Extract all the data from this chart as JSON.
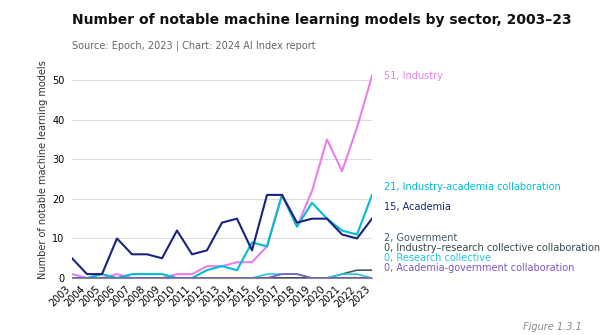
{
  "title": "Number of notable machine learning models by sector, 2003–23",
  "subtitle": "Source: Epoch, 2023 | Chart: 2024 AI Index report",
  "ylabel": "Number of notable machine learning models",
  "figure_label": "Figure 1.3.1",
  "years": [
    2003,
    2004,
    2005,
    2006,
    2007,
    2008,
    2009,
    2010,
    2011,
    2012,
    2013,
    2014,
    2015,
    2016,
    2017,
    2018,
    2019,
    2020,
    2021,
    2022,
    2023
  ],
  "series": [
    {
      "label": "Industry",
      "end_label": "51, Industry",
      "color": "#e87ee8",
      "linewidth": 1.5,
      "values": [
        1,
        0,
        0,
        1,
        0,
        0,
        0,
        1,
        1,
        3,
        3,
        4,
        4,
        8,
        21,
        13,
        22,
        35,
        27,
        38,
        51
      ]
    },
    {
      "label": "Industry-academia collaboration",
      "end_label": "21, Industry-academia collaboration",
      "color": "#00bcd4",
      "linewidth": 1.5,
      "values": [
        0,
        0,
        1,
        0,
        1,
        1,
        1,
        0,
        0,
        2,
        3,
        2,
        9,
        8,
        21,
        13,
        19,
        15,
        12,
        11,
        21
      ]
    },
    {
      "label": "Academia",
      "end_label": "15, Academia",
      "color": "#1a237e",
      "linewidth": 1.5,
      "values": [
        5,
        1,
        1,
        10,
        6,
        6,
        5,
        12,
        6,
        7,
        14,
        15,
        7,
        21,
        21,
        14,
        15,
        15,
        11,
        10,
        15
      ]
    },
    {
      "label": "Government",
      "end_label": "2, Government",
      "color": "#455a64",
      "linewidth": 1.2,
      "values": [
        0,
        0,
        0,
        0,
        0,
        0,
        0,
        0,
        0,
        0,
        0,
        0,
        0,
        0,
        0,
        0,
        0,
        0,
        1,
        2,
        2
      ]
    },
    {
      "label": "Industry–research collective collaboration",
      "end_label": "0, Industry–research collective collaboration",
      "color": "#37474f",
      "linewidth": 1.2,
      "values": [
        0,
        0,
        0,
        0,
        0,
        0,
        0,
        0,
        0,
        0,
        0,
        0,
        0,
        0,
        0,
        0,
        0,
        0,
        0,
        0,
        0
      ]
    },
    {
      "label": "Research collective",
      "end_label": "0, Research collective",
      "color": "#26c6da",
      "linewidth": 1.2,
      "values": [
        0,
        0,
        0,
        0,
        0,
        0,
        0,
        0,
        0,
        0,
        0,
        0,
        0,
        1,
        1,
        1,
        0,
        0,
        1,
        1,
        0
      ]
    },
    {
      "label": "Academia-government collaboration",
      "end_label": "0, Academia-government collaboration",
      "color": "#7e57c2",
      "linewidth": 1.2,
      "values": [
        0,
        0,
        0,
        0,
        0,
        0,
        0,
        0,
        0,
        0,
        0,
        0,
        0,
        0,
        1,
        1,
        0,
        0,
        0,
        0,
        0
      ]
    }
  ],
  "ylim": [
    0,
    55
  ],
  "yticks": [
    0,
    10,
    20,
    30,
    40,
    50
  ],
  "background_color": "#ffffff",
  "title_fontsize": 10,
  "subtitle_fontsize": 7,
  "axis_label_fontsize": 7,
  "tick_fontsize": 7,
  "annotation_fontsize": 7,
  "label_positions": [
    {
      "end_label": "51, Industry",
      "color": "#e87ee8",
      "y": 51
    },
    {
      "end_label": "21, Industry-academia collaboration",
      "color": "#00bcd4",
      "y": 23
    },
    {
      "end_label": "15, Academia",
      "color": "#1a237e",
      "y": 18
    },
    {
      "end_label": "2, Government",
      "color": "#455a64",
      "y": 10
    },
    {
      "end_label": "0, Industry–research collective collaboration",
      "color": "#37474f",
      "y": 7.5
    },
    {
      "end_label": "0, Research collective",
      "color": "#26c6da",
      "y": 5
    },
    {
      "end_label": "0, Academia-government collaboration",
      "color": "#7e57c2",
      "y": 2.5
    }
  ]
}
